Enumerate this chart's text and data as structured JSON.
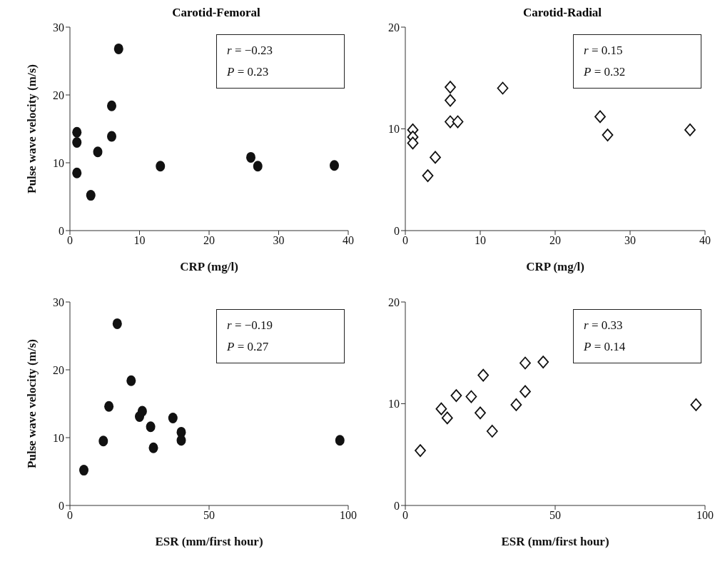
{
  "chart_data": [
    {
      "type": "scatter",
      "title": "Carotid-Femoral",
      "xlabel": "CRP (mg/l)",
      "ylabel": "Pulse wave velocity (m/s)",
      "x": [
        1,
        1,
        1,
        3,
        4,
        6,
        6,
        7,
        13,
        26,
        27,
        38
      ],
      "series": [
        {
          "color": "#111111",
          "values": [
            14.5,
            13,
            8.5,
            5.2,
            11.6,
            18.4,
            13.9,
            26.8,
            9.5,
            10.8,
            9.5,
            9.6
          ]
        }
      ],
      "marker": "circle",
      "xlim": [
        0,
        40
      ],
      "xticks": [
        0,
        10,
        20,
        30,
        40
      ],
      "ylim": [
        0,
        30
      ],
      "yticks": [
        0,
        10,
        20,
        30
      ],
      "annotations": [
        "r = −0.23",
        "P = 0.23"
      ],
      "grid": false,
      "legend": false
    },
    {
      "type": "scatter",
      "title": "Carotid-Radial",
      "xlabel": "CRP (mg/l)",
      "x": [
        1,
        1,
        1,
        3,
        4,
        6,
        6,
        6,
        7,
        13,
        26,
        27,
        38
      ],
      "series": [
        {
          "color": "#111111",
          "values": [
            9.9,
            9.2,
            8.6,
            5.4,
            7.2,
            14.1,
            12.8,
            10.7,
            10.7,
            14,
            11.2,
            9.4,
            9.9
          ]
        }
      ],
      "marker": "diamond",
      "xlim": [
        0,
        40
      ],
      "xticks": [
        0,
        10,
        20,
        30,
        40
      ],
      "ylim": [
        0,
        20
      ],
      "yticks": [
        0,
        10,
        20
      ],
      "annotations": [
        "r = 0.15",
        "P = 0.32"
      ],
      "grid": false,
      "legend": false
    },
    {
      "type": "scatter",
      "xlabel": "ESR (mm/first hour)",
      "ylabel": "Pulse wave velocity (m/s)",
      "x": [
        5,
        12,
        14,
        17,
        22,
        25,
        26,
        29,
        30,
        37,
        40,
        40,
        97
      ],
      "series": [
        {
          "color": "#111111",
          "values": [
            5.2,
            9.5,
            14.6,
            26.8,
            18.4,
            13.1,
            13.9,
            11.6,
            8.5,
            12.9,
            10.8,
            9.6,
            9.6
          ]
        }
      ],
      "marker": "circle",
      "xlim": [
        0,
        100
      ],
      "xticks": [
        0,
        50,
        100
      ],
      "ylim": [
        0,
        30
      ],
      "yticks": [
        0,
        10,
        20,
        30
      ],
      "annotations": [
        "r = −0.19",
        "P = 0.27"
      ],
      "grid": false,
      "legend": false
    },
    {
      "type": "scatter",
      "xlabel": "ESR (mm/first hour)",
      "x": [
        5,
        12,
        14,
        17,
        22,
        25,
        26,
        29,
        37,
        40,
        40,
        46,
        97
      ],
      "series": [
        {
          "color": "#111111",
          "values": [
            5.4,
            9.5,
            8.6,
            10.8,
            10.7,
            9.1,
            12.8,
            7.3,
            9.9,
            11.2,
            14,
            14.1,
            9.9
          ]
        }
      ],
      "marker": "diamond",
      "xlim": [
        0,
        100
      ],
      "xticks": [
        0,
        50,
        100
      ],
      "ylim": [
        0,
        20
      ],
      "yticks": [
        0,
        10,
        20
      ],
      "annotations": [
        "r = 0.33",
        "P = 0.14"
      ],
      "grid": false,
      "legend": false
    }
  ]
}
